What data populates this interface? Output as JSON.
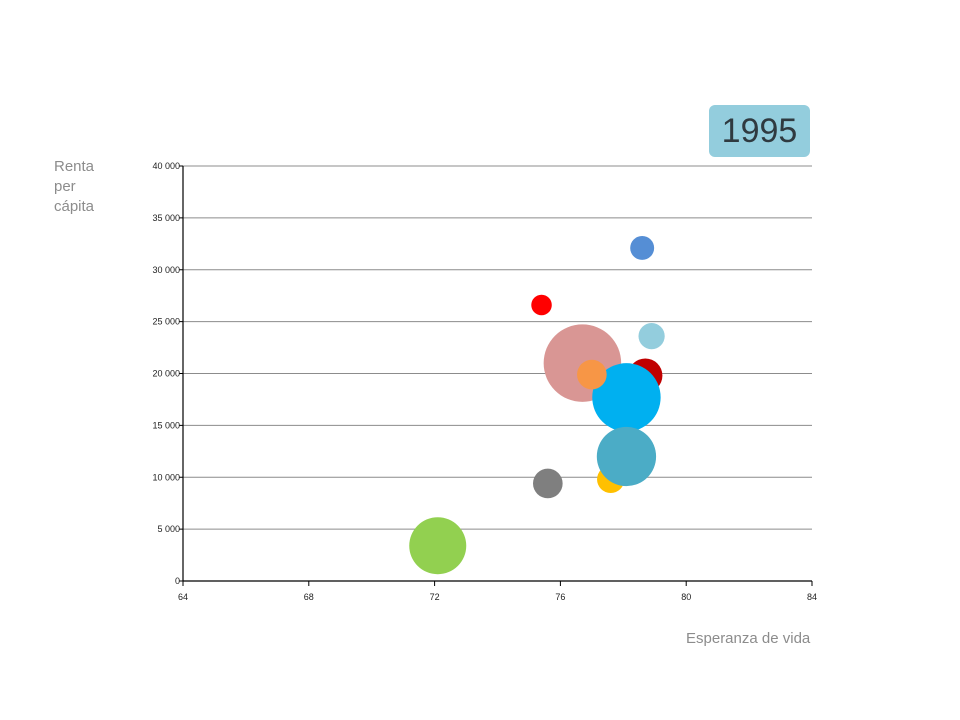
{
  "chart_data": {
    "type": "scatter",
    "subtype": "bubble",
    "annotation": "1995",
    "xlabel": "Esperanza de vida",
    "ylabel": "Renta per cápita",
    "xlim": [
      64,
      84
    ],
    "ylim": [
      0,
      40000
    ],
    "xticks": [
      "64",
      "68",
      "72",
      "76",
      "80",
      "84"
    ],
    "yticks": [
      "0",
      "5 000",
      "10 000",
      "15 000",
      "20 000",
      "25 000",
      "30 000",
      "35 000",
      "40 000"
    ],
    "grid": true,
    "legend": "none",
    "series": [
      {
        "x": 76.7,
        "y": 21000,
        "size": 3.4,
        "color": "#d99694"
      },
      {
        "x": 78.7,
        "y": 19800,
        "size": 1.5,
        "color": "#c00000"
      },
      {
        "x": 78.1,
        "y": 17700,
        "size": 3.0,
        "color": "#00b0f0"
      },
      {
        "x": 77.6,
        "y": 9800,
        "size": 1.2,
        "color": "#ffc000"
      },
      {
        "x": 78.1,
        "y": 12000,
        "size": 2.6,
        "color": "#4bacc6"
      },
      {
        "x": 75.6,
        "y": 9400,
        "size": 1.3,
        "color": "#7f7f7f"
      },
      {
        "x": 72.1,
        "y": 3400,
        "size": 2.5,
        "color": "#92d050"
      },
      {
        "x": 75.4,
        "y": 26600,
        "size": 0.9,
        "color": "#ff0000"
      },
      {
        "x": 78.6,
        "y": 32100,
        "size": 1.05,
        "color": "#558ed5"
      },
      {
        "x": 78.9,
        "y": 23600,
        "size": 1.15,
        "color": "#93cddd"
      },
      {
        "x": 77.0,
        "y": 19900,
        "size": 1.3,
        "color": "#f79646"
      }
    ]
  },
  "badge_color": "#93cddd"
}
